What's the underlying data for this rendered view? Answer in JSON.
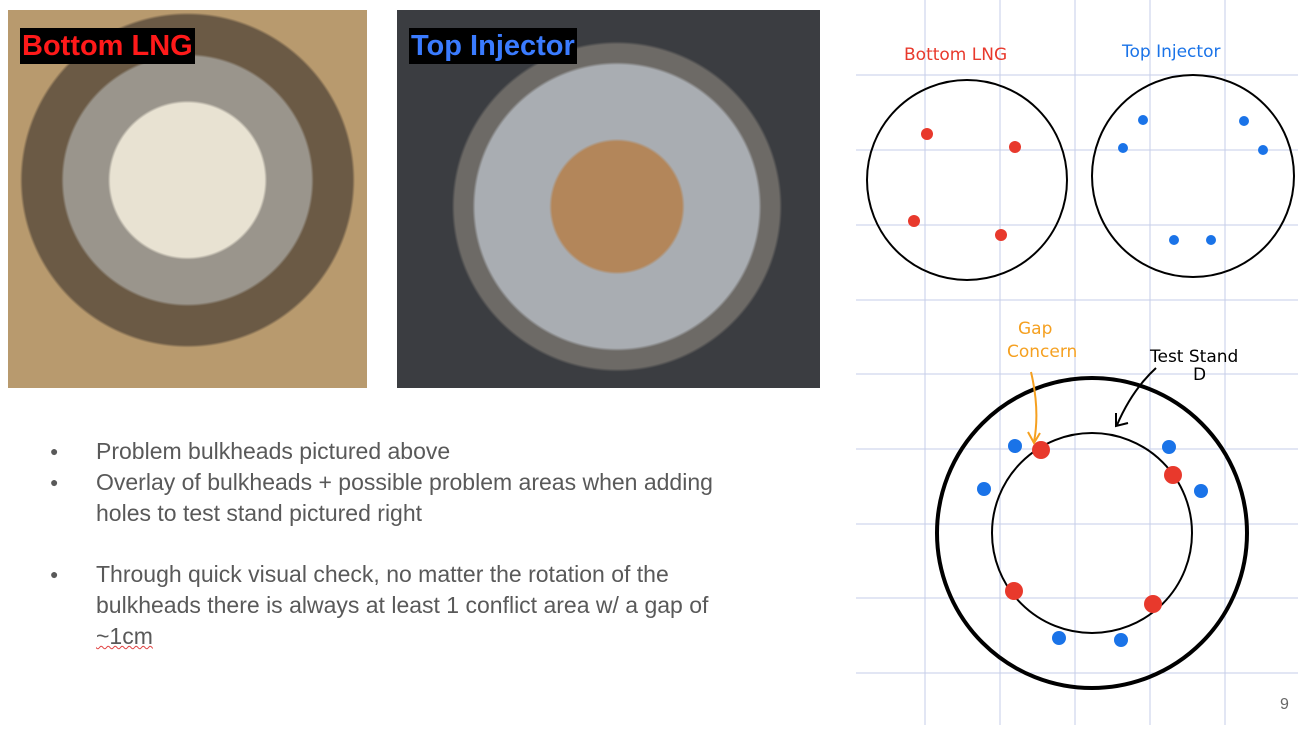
{
  "photos": {
    "left_label": "Bottom LNG",
    "right_label": "Top Injector"
  },
  "bullets": [
    "Problem bulkheads pictured above",
    "Overlay of bulkheads + possible problem areas when adding holes to test stand pictured right",
    "Through quick visual check, no matter the rotation of the bulkheads there is always at least 1 conflict area w/ a gap of ",
    "~1cm"
  ],
  "sketch": {
    "bottom_lng_label": "Bottom LNG",
    "top_injector_label": "Top Injector",
    "gap_concern_line1": "Gap",
    "gap_concern_line2": "Concern",
    "test_stand_line1": "Test Stand",
    "test_stand_line2": "D"
  },
  "colors": {
    "red": "#e8392c",
    "blue": "#1a73e8",
    "orange": "#f5a020",
    "grid": "#c5cde8"
  },
  "page_number": "9"
}
